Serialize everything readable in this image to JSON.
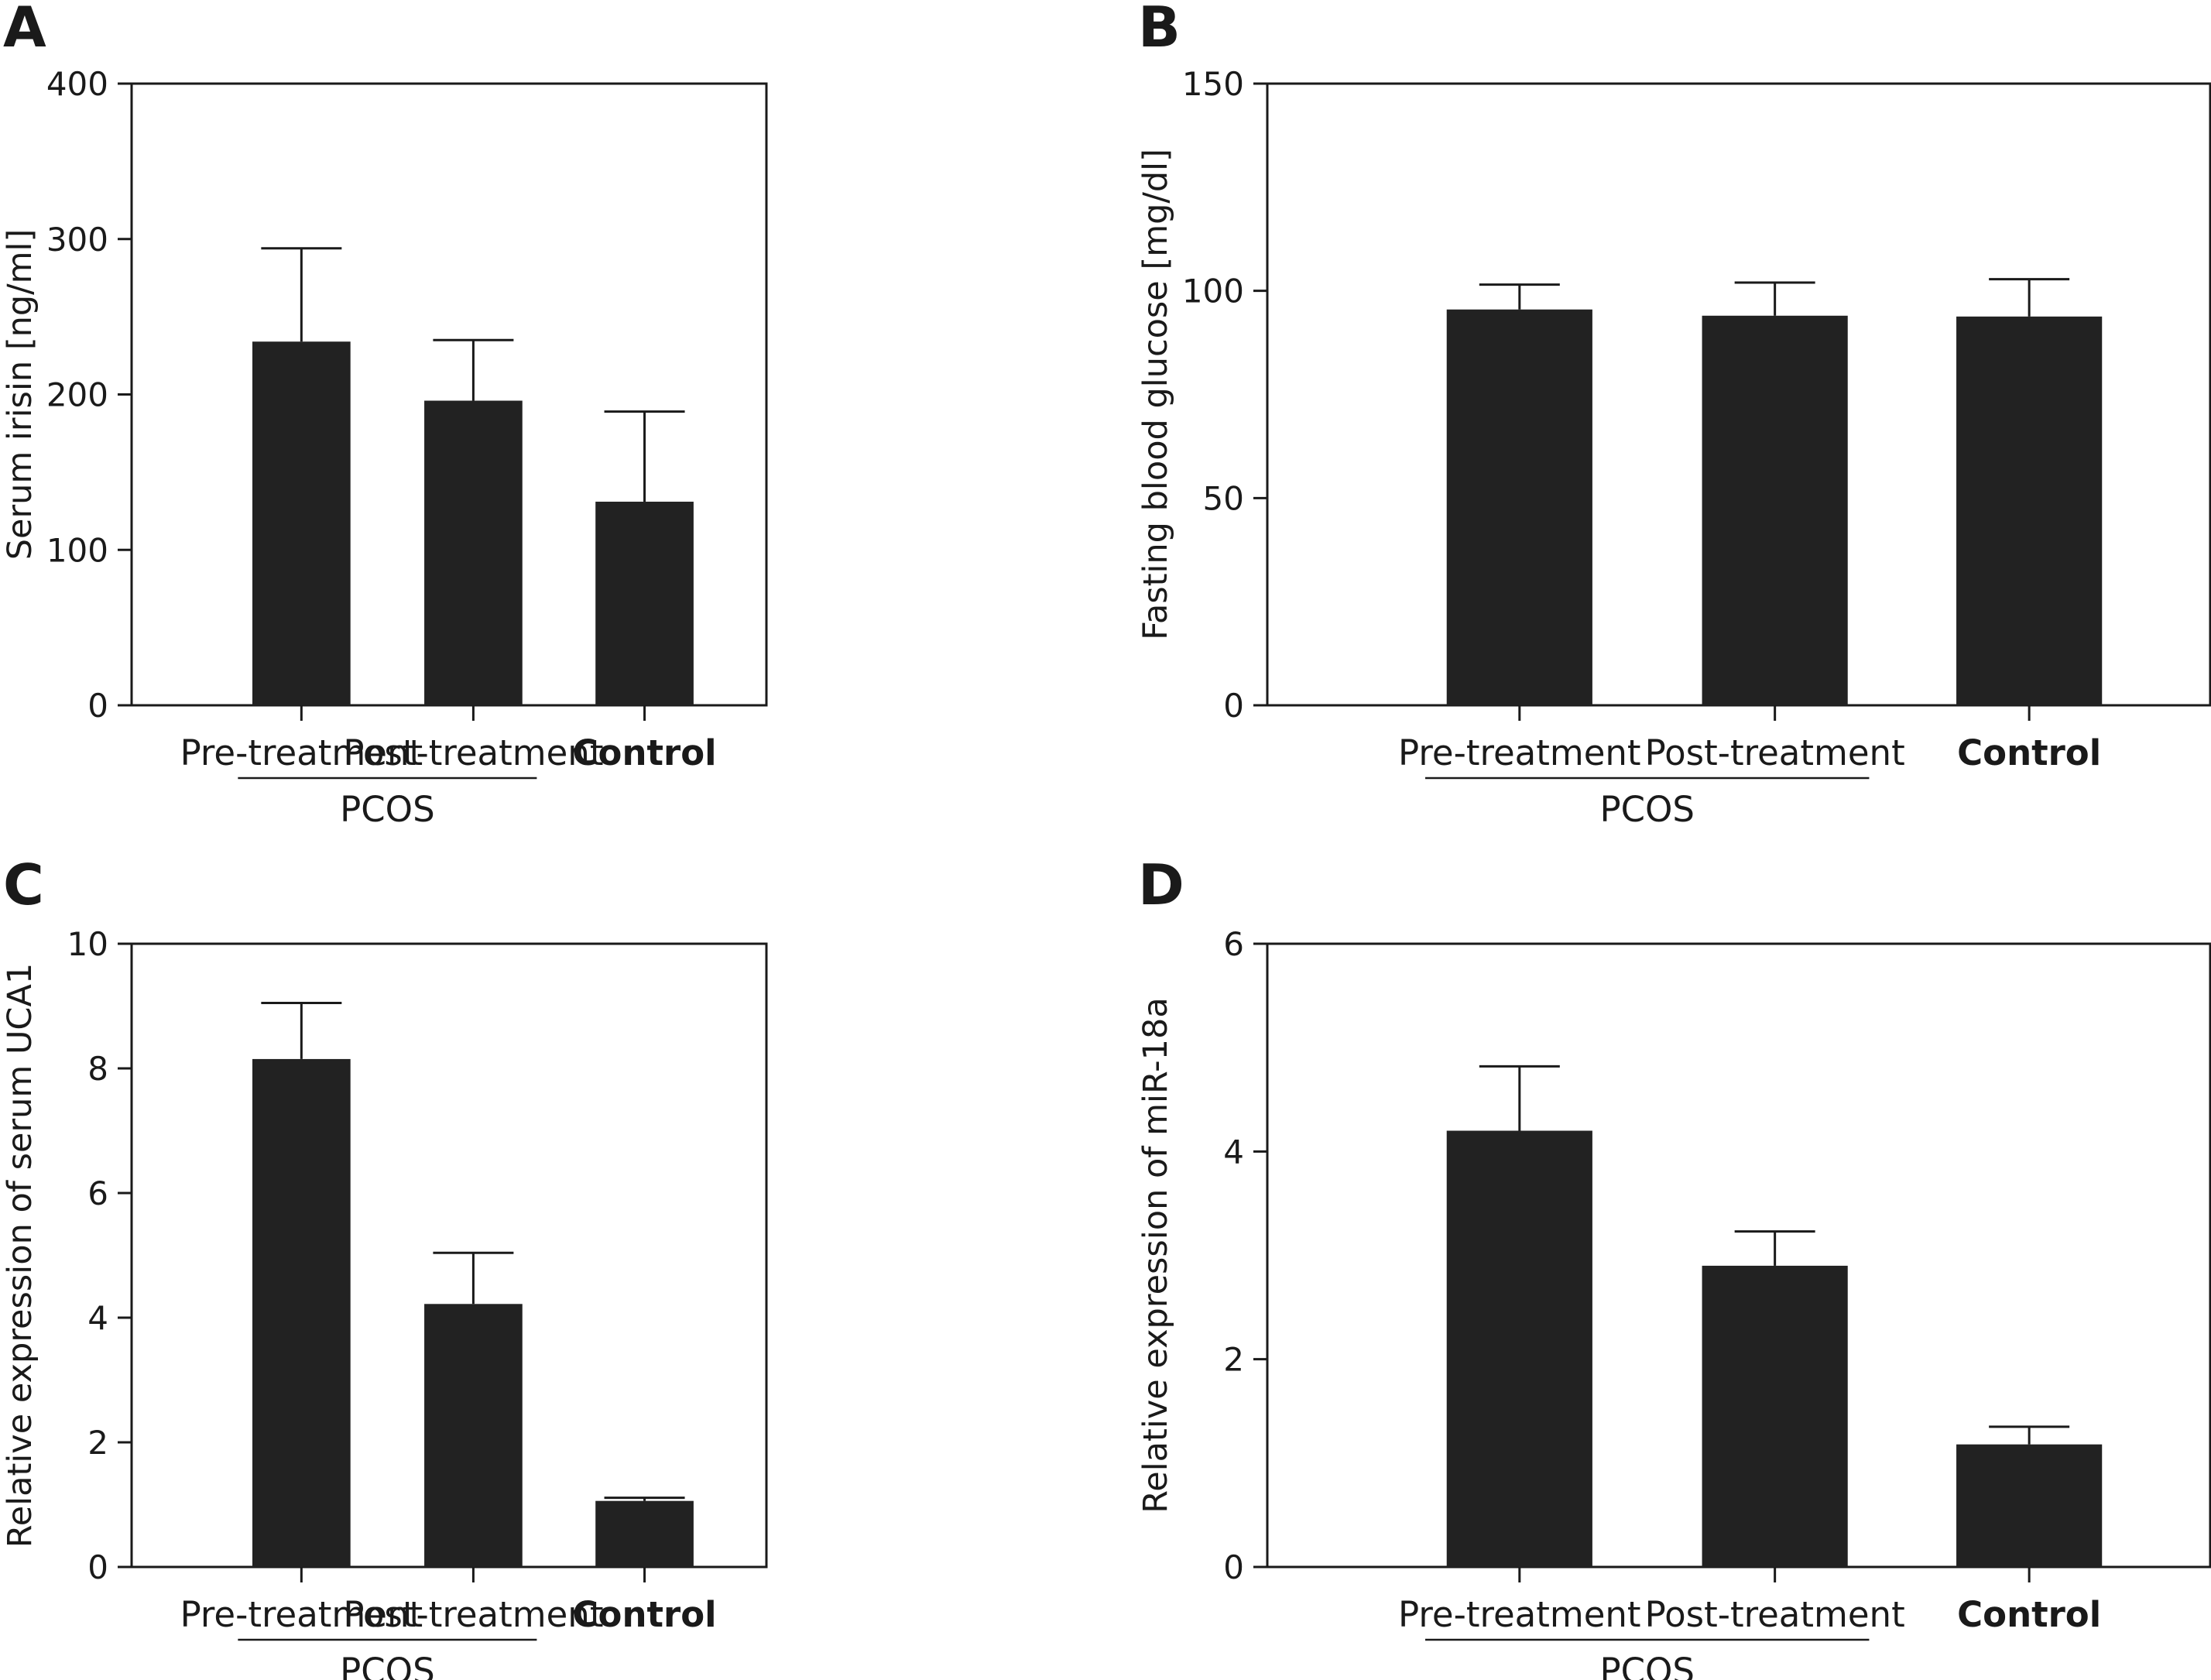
{
  "colors": {
    "bar": "#222222",
    "axis": "#1a1a1a",
    "background": "#ffffff"
  },
  "chart_data": [
    {
      "panel": "A",
      "type": "bar",
      "categories": [
        "Pre-treatment",
        "Post-treatment",
        "Control"
      ],
      "group_label": "PCOS",
      "group_categories": [
        "Pre-treatment",
        "Post-treatment"
      ],
      "values": [
        234,
        196,
        131
      ],
      "errors": [
        60,
        39,
        58
      ],
      "ylabel": "Serum irisin [ng/ml]",
      "xlabel": "",
      "ylim": [
        0,
        400
      ],
      "yticks": [
        0,
        100,
        200,
        300,
        400
      ],
      "ytick_labels": [
        "0",
        "100",
        "200",
        "300",
        "400"
      ],
      "grid": false,
      "legend": "none"
    },
    {
      "panel": "B",
      "type": "bar",
      "categories": [
        "Pre-treatment",
        "Post-treatment",
        "Control"
      ],
      "group_label": "PCOS",
      "group_categories": [
        "Pre-treatment",
        "Post-treatment"
      ],
      "values": [
        95.5,
        94,
        93.8
      ],
      "errors": [
        6,
        8,
        9
      ],
      "ylabel": "Fasting blood glucose [mg/dl]",
      "xlabel": "",
      "ylim": [
        0,
        150
      ],
      "yticks": [
        0,
        50,
        100,
        150
      ],
      "ytick_labels": [
        "0",
        "50",
        "100",
        "150"
      ],
      "grid": false,
      "legend": "none"
    },
    {
      "panel": "C",
      "type": "bar",
      "categories": [
        "Pre-treatment",
        "Post-treatment",
        "Control"
      ],
      "group_label": "PCOS",
      "group_categories": [
        "Pre-treatment",
        "Post-treatment"
      ],
      "values": [
        8.15,
        4.22,
        1.06
      ],
      "errors": [
        0.9,
        0.82,
        0.05
      ],
      "ylabel": "Relative expression of serum UCA1",
      "xlabel": "",
      "ylim": [
        0,
        10
      ],
      "yticks": [
        0,
        2,
        4,
        6,
        8,
        10
      ],
      "ytick_labels": [
        "0",
        "2",
        "4",
        "6",
        "8",
        "10"
      ],
      "grid": false,
      "legend": "none"
    },
    {
      "panel": "D",
      "type": "bar",
      "categories": [
        "Pre-treatment",
        "Post-treatment",
        "Control"
      ],
      "group_label": "PCOS",
      "group_categories": [
        "Pre-treatment",
        "Post-treatment"
      ],
      "values": [
        4.2,
        2.9,
        1.18
      ],
      "errors": [
        0.62,
        0.33,
        0.17
      ],
      "ylabel": "Relative expression of miR-18a",
      "xlabel": "",
      "ylim": [
        0,
        6
      ],
      "yticks": [
        0,
        2,
        4,
        6
      ],
      "ytick_labels": [
        "0",
        "2",
        "4",
        "6"
      ],
      "grid": false,
      "legend": "none"
    }
  ]
}
